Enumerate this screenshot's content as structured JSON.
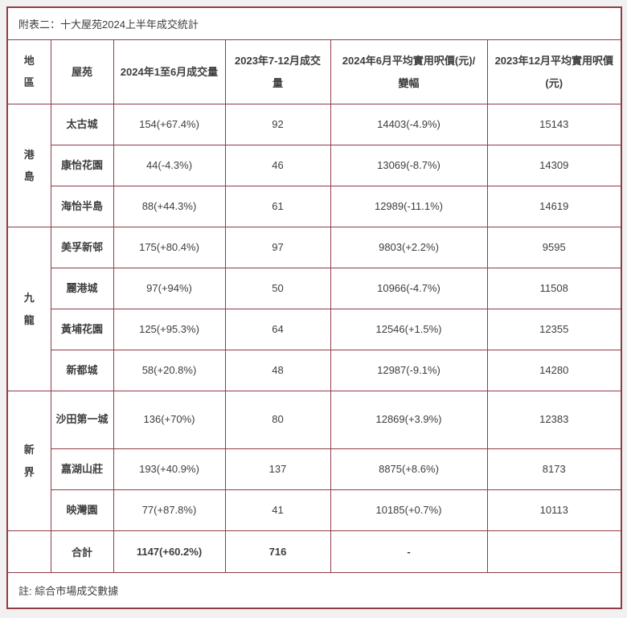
{
  "colors": {
    "border": "#8e3b44",
    "text": "#3e3e3e",
    "page_background": "#f1f1f1",
    "cell_background": "#ffffff"
  },
  "chart_data": {
    "type": "table",
    "title": "附表二：十大屋苑2024上半年成交統計",
    "note": "註: 綜合市場成交數據",
    "columns": [
      "地區",
      "屋苑",
      "2024年1至6月成交量",
      "2023年7-12月成交量",
      "2024年6月平均實用呎價(元)/變幅",
      "2023年12月平均實用呎價(元)"
    ],
    "rows": [
      [
        "港島",
        "太古城",
        "154(+67.4%)",
        "92",
        "14403(-4.9%)",
        "15143"
      ],
      [
        "",
        "康怡花園",
        "44(-4.3%)",
        "46",
        "13069(-8.7%)",
        "14309"
      ],
      [
        "",
        "海怡半島",
        "88(+44.3%)",
        "61",
        "12989(-11.1%)",
        "14619"
      ],
      [
        "九龍",
        "美孚新邨",
        "175(+80.4%)",
        "97",
        "9803(+2.2%)",
        "9595"
      ],
      [
        "",
        "麗港城",
        "97(+94%)",
        "50",
        "10966(-4.7%)",
        "11508"
      ],
      [
        "",
        "黃埔花園",
        "125(+95.3%)",
        "64",
        "12546(+1.5%)",
        "12355"
      ],
      [
        "",
        "新都城",
        "58(+20.8%)",
        "48",
        "12987(-9.1%)",
        "14280"
      ],
      [
        "新界",
        "沙田第一城",
        "136(+70%)",
        "80",
        "12869(+3.9%)",
        "12383"
      ],
      [
        "",
        "嘉湖山莊",
        "193(+40.9%)",
        "137",
        "8875(+8.6%)",
        "8173"
      ],
      [
        "",
        "映灣園",
        "77(+87.8%)",
        "41",
        "10185(+0.7%)",
        "10113"
      ],
      [
        "",
        "合計",
        "1147(+60.2%)",
        "716",
        "-",
        ""
      ]
    ]
  }
}
